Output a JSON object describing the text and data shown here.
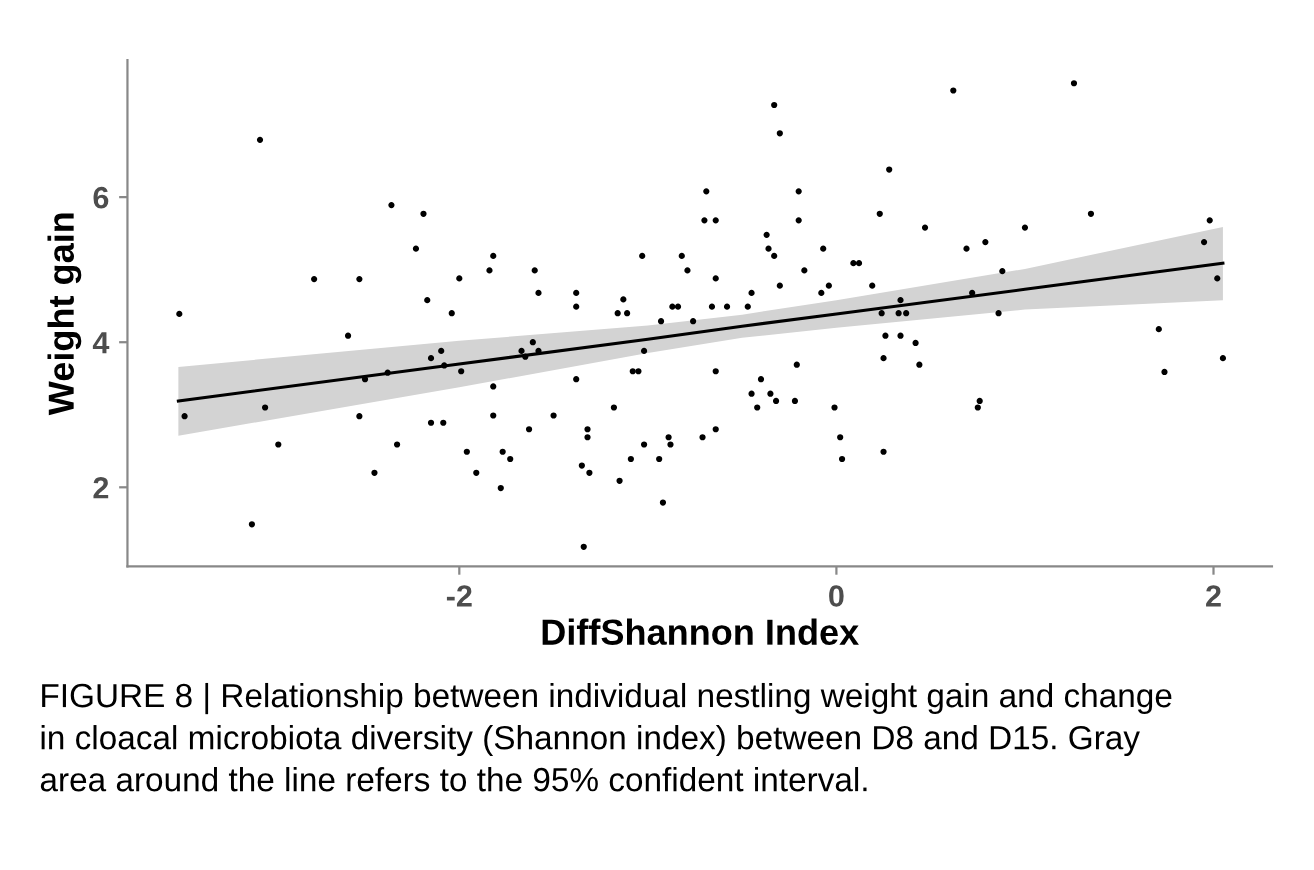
{
  "chart_data": {
    "type": "scatter",
    "xlabel": "DiffShannon Index",
    "ylabel": "Weight gain",
    "xlim": [
      -3.76,
      2.31
    ],
    "ylim": [
      0.91,
      7.89
    ],
    "xticks": [
      -2,
      0,
      2
    ],
    "yticks": [
      2,
      4,
      6
    ],
    "grid": false,
    "legend": false,
    "series": [
      {
        "color": "#000000",
        "marker": "circle",
        "x": [
          -3.485,
          -3.457,
          -3.057,
          -3.1,
          -3.03,
          -2.96,
          -2.77,
          -2.53,
          -2.59,
          -2.53,
          -2.5,
          -2.45,
          -2.38,
          -2.36,
          -2.33,
          -2.23,
          -2.19,
          -2.17,
          -2.15,
          -2.15,
          -2.096,
          -2.085,
          -2.08,
          -2.04,
          -2.0,
          -1.99,
          -1.96,
          -1.91,
          -1.84,
          -1.82,
          -1.82,
          -1.82,
          -1.78,
          -1.77,
          -1.73,
          -1.67,
          -1.65,
          -1.61,
          -1.6,
          -1.58,
          -1.58,
          -1.63,
          -1.5,
          -1.38,
          -1.38,
          -1.38,
          -1.35,
          -1.32,
          -1.32,
          -1.31,
          -1.34,
          -1.18,
          -1.16,
          -1.13,
          -1.11,
          -1.15,
          -1.09,
          -1.08,
          -1.05,
          -1.03,
          -1.02,
          -1.02,
          -0.94,
          -0.93,
          -0.92,
          -0.89,
          -0.88,
          -0.87,
          -0.84,
          -0.82,
          -0.79,
          -0.76,
          -0.71,
          -0.7,
          -0.69,
          -0.66,
          -0.64,
          -0.64,
          -0.64,
          -0.64,
          -0.58,
          -0.47,
          -0.45,
          -0.45,
          -0.42,
          -0.4,
          -0.37,
          -0.36,
          -0.35,
          -0.33,
          -0.32,
          -0.33,
          -0.3,
          -0.3,
          -0.22,
          -0.21,
          -0.2,
          -0.2,
          -0.17,
          -0.07,
          -0.08,
          -0.04,
          -0.01,
          0.02,
          0.03,
          0.09,
          0.12,
          0.19,
          0.23,
          0.24,
          0.26,
          0.25,
          0.25,
          0.28,
          0.33,
          0.34,
          0.34,
          0.37,
          0.42,
          0.44,
          0.47,
          0.62,
          0.69,
          0.72,
          0.75,
          0.76,
          0.79,
          0.86,
          0.88,
          1.0,
          1.26,
          1.35,
          1.71,
          1.74,
          1.95,
          1.98,
          2.02,
          2.05
        ],
        "values": [
          4.39,
          2.98,
          6.79,
          1.49,
          3.1,
          2.59,
          4.87,
          4.87,
          4.09,
          2.98,
          3.49,
          2.2,
          3.58,
          5.89,
          2.59,
          5.29,
          5.77,
          4.58,
          3.78,
          2.89,
          3.88,
          2.89,
          3.68,
          4.4,
          4.88,
          3.6,
          2.49,
          2.2,
          4.99,
          5.19,
          3.39,
          2.99,
          1.99,
          2.49,
          2.39,
          3.88,
          3.8,
          4.0,
          4.99,
          4.68,
          3.88,
          2.8,
          2.99,
          4.68,
          4.49,
          3.49,
          2.3,
          2.69,
          2.8,
          2.2,
          1.18,
          3.1,
          4.4,
          4.59,
          4.4,
          2.09,
          2.39,
          3.6,
          3.6,
          5.19,
          3.88,
          2.59,
          2.39,
          4.29,
          1.79,
          2.69,
          2.59,
          4.49,
          4.49,
          5.19,
          4.99,
          4.29,
          2.69,
          5.68,
          6.08,
          4.49,
          5.68,
          4.88,
          3.6,
          2.8,
          4.49,
          4.49,
          4.68,
          3.29,
          3.1,
          3.49,
          5.48,
          5.29,
          3.29,
          5.19,
          3.19,
          7.27,
          6.88,
          4.78,
          3.19,
          3.69,
          6.08,
          5.68,
          4.99,
          5.29,
          4.68,
          4.78,
          3.1,
          2.69,
          2.39,
          5.09,
          5.09,
          4.78,
          5.77,
          4.4,
          4.09,
          3.78,
          2.49,
          6.38,
          4.4,
          4.58,
          4.09,
          4.4,
          3.99,
          3.69,
          5.58,
          7.47,
          5.29,
          4.68,
          3.1,
          3.19,
          5.38,
          4.4,
          4.98,
          5.58,
          7.57,
          5.77,
          4.18,
          3.59,
          5.38,
          5.68,
          4.88,
          3.78
        ]
      },
      {
        "type": "line",
        "color": "#000000",
        "marker": "none",
        "line_style": "solid",
        "x": [
          -3.49,
          -2,
          -1,
          -0.5,
          0,
          1,
          2.05
        ],
        "values": [
          3.19,
          3.7,
          4.04,
          4.22,
          4.39,
          4.73,
          5.09
        ],
        "lower": [
          2.71,
          3.38,
          3.85,
          4.06,
          4.2,
          4.45,
          4.58
        ],
        "upper": [
          3.66,
          4.02,
          4.23,
          4.38,
          4.58,
          5.01,
          5.59
        ]
      }
    ],
    "annotations": [
      "FIGURE 8 | Relationship between individual nestling weight gain and change\nin cloacal microbiota diversity (Shannon index) between D8 and D15. Gray\narea around the line refers to the 95% confident interval."
    ]
  }
}
